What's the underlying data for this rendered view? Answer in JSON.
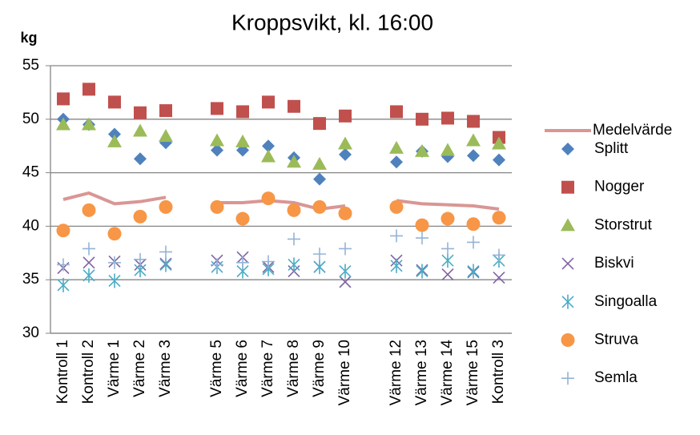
{
  "chart_data": {
    "type": "line_scatter",
    "title": "Kroppsvikt, kl. 16:00",
    "y_label": "kg",
    "categories": [
      "Kontroll 1",
      "Kontroll 2",
      "Värme 1",
      "Värme 2",
      "Värme 3",
      null,
      "Värme 5",
      "Värme 6",
      "Värme 7",
      "Värme 8",
      "Värme 9",
      "Värme 10",
      null,
      "Värme 12",
      "Värme 13",
      "Värme 14",
      "Värme 15",
      "Kontroll 3"
    ],
    "ylim": [
      30,
      55
    ],
    "yticks": [
      30,
      35,
      40,
      45,
      50,
      55
    ],
    "grid": true,
    "legend": "right",
    "series": [
      {
        "name": "Medelvärde",
        "color": "#d99694",
        "marker": "line",
        "values": [
          42.5,
          43.1,
          42.1,
          42.3,
          42.7,
          null,
          42.2,
          42.2,
          42.4,
          42.2,
          41.6,
          41.9,
          null,
          42.4,
          42.1,
          42.0,
          41.9,
          41.6
        ]
      },
      {
        "name": "Splitt",
        "color": "#4f81bd",
        "marker": "diamond",
        "values": [
          50.0,
          49.5,
          48.6,
          46.3,
          47.8,
          null,
          47.1,
          47.1,
          47.5,
          46.4,
          44.4,
          46.7,
          null,
          46.0,
          47.0,
          46.5,
          46.6,
          46.2
        ]
      },
      {
        "name": "Nogger",
        "color": "#c0504d",
        "marker": "square",
        "values": [
          51.9,
          52.8,
          51.6,
          50.6,
          50.8,
          null,
          51.0,
          50.7,
          51.6,
          51.2,
          49.6,
          50.3,
          null,
          50.7,
          50.0,
          50.1,
          49.8,
          48.3
        ]
      },
      {
        "name": "Storstrut",
        "color": "#9bbb59",
        "marker": "triangle",
        "values": [
          49.5,
          49.5,
          47.9,
          48.9,
          48.4,
          null,
          48.0,
          47.9,
          46.5,
          46.0,
          45.8,
          47.7,
          null,
          47.3,
          47.0,
          47.1,
          48.0,
          47.7
        ]
      },
      {
        "name": "Biskvi",
        "color": "#8064a2",
        "marker": "x",
        "values": [
          36.1,
          36.6,
          36.7,
          36.4,
          36.5,
          null,
          36.8,
          37.1,
          36.2,
          35.8,
          36.2,
          34.8,
          null,
          36.8,
          35.9,
          35.5,
          35.7,
          35.2
        ]
      },
      {
        "name": "Singoalla",
        "color": "#4bacc6",
        "marker": "star",
        "values": [
          34.5,
          35.4,
          34.9,
          35.9,
          36.4,
          null,
          36.2,
          35.8,
          36.0,
          36.4,
          36.2,
          35.8,
          null,
          36.3,
          35.8,
          36.8,
          35.8,
          36.8
        ]
      },
      {
        "name": "Struva",
        "color": "#f79646",
        "marker": "circle",
        "values": [
          39.6,
          41.5,
          39.3,
          40.9,
          41.8,
          null,
          41.8,
          40.7,
          42.6,
          41.5,
          41.8,
          41.2,
          null,
          41.8,
          40.1,
          40.7,
          40.2,
          40.8
        ]
      },
      {
        "name": "Semla",
        "color": "#95b3d7",
        "marker": "plus",
        "values": [
          36.4,
          37.9,
          36.6,
          36.9,
          37.6,
          null,
          36.4,
          36.6,
          36.7,
          38.8,
          37.4,
          37.9,
          null,
          39.1,
          38.9,
          37.9,
          38.5,
          37.3
        ]
      }
    ]
  }
}
